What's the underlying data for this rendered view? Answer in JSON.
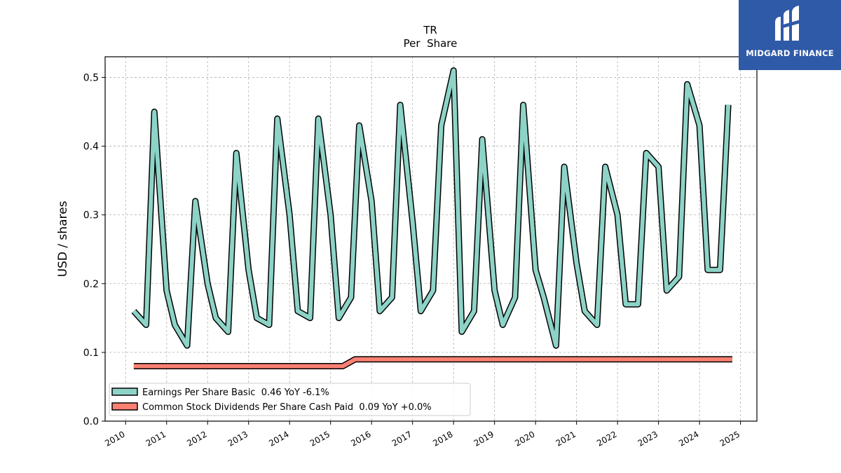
{
  "chart_data": {
    "type": "line",
    "title": "TR",
    "subtitle": "Per  Share",
    "xlabel": "",
    "ylabel": "USD / shares",
    "xlim": [
      2009.5,
      2025.4
    ],
    "ylim": [
      0.0,
      0.53
    ],
    "x_ticks": [
      "2010",
      "2011",
      "2012",
      "2013",
      "2014",
      "2015",
      "2016",
      "2017",
      "2018",
      "2019",
      "2020",
      "2021",
      "2022",
      "2023",
      "2024",
      "2025"
    ],
    "y_ticks": [
      "0.0",
      "0.1",
      "0.2",
      "0.3",
      "0.4",
      "0.5"
    ],
    "grid": true,
    "legend_position": "lower-left",
    "series": [
      {
        "name": "Earnings Per Share Basic  0.46 YoY -6.1%",
        "color": "#8dd3c7",
        "x": [
          2010.2,
          2010.5,
          2010.7,
          2011.0,
          2011.2,
          2011.5,
          2011.7,
          2012.0,
          2012.2,
          2012.5,
          2012.7,
          2013.0,
          2013.2,
          2013.5,
          2013.7,
          2014.0,
          2014.2,
          2014.5,
          2014.7,
          2015.0,
          2015.2,
          2015.5,
          2015.7,
          2016.0,
          2016.2,
          2016.5,
          2016.7,
          2017.0,
          2017.2,
          2017.5,
          2017.7,
          2018.0,
          2018.2,
          2018.5,
          2018.7,
          2019.0,
          2019.2,
          2019.5,
          2019.7,
          2020.0,
          2020.2,
          2020.5,
          2020.7,
          2021.0,
          2021.2,
          2021.5,
          2021.7,
          2022.0,
          2022.2,
          2022.5,
          2022.7,
          2023.0,
          2023.2,
          2023.5,
          2023.7,
          2024.0,
          2024.2,
          2024.5,
          2024.7
        ],
        "values": [
          0.16,
          0.14,
          0.45,
          0.19,
          0.14,
          0.11,
          0.32,
          0.2,
          0.15,
          0.13,
          0.39,
          0.22,
          0.15,
          0.14,
          0.44,
          0.3,
          0.16,
          0.15,
          0.44,
          0.3,
          0.15,
          0.18,
          0.43,
          0.32,
          0.16,
          0.18,
          0.46,
          0.29,
          0.16,
          0.19,
          0.43,
          0.51,
          0.13,
          0.16,
          0.41,
          0.19,
          0.14,
          0.18,
          0.46,
          0.22,
          0.18,
          0.11,
          0.37,
          0.23,
          0.16,
          0.14,
          0.37,
          0.3,
          0.17,
          0.17,
          0.39,
          0.37,
          0.19,
          0.21,
          0.49,
          0.43,
          0.22,
          0.22,
          0.46
        ]
      },
      {
        "name": "Common Stock Dividends Per Share Cash Paid  0.09 YoY +0.0%",
        "color": "#fb8072",
        "x": [
          2010.2,
          2015.3,
          2015.6,
          2024.8
        ],
        "values": [
          0.08,
          0.08,
          0.09,
          0.09
        ]
      }
    ]
  },
  "logo": {
    "text": "MIDGARD FINANCE",
    "color": "#2f5aa8"
  }
}
